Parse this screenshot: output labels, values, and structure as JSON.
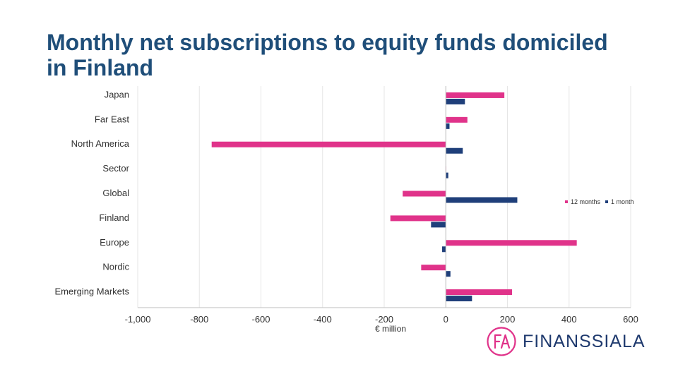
{
  "title": "Monthly net subscriptions to equity funds domiciled in Finland",
  "logo_text": "FINANSSIALA",
  "colors": {
    "accent": "#e0338a",
    "navy": "#1f3f7a",
    "title": "#1f4e79"
  },
  "chart_data": {
    "type": "bar",
    "orientation": "horizontal",
    "title": "Monthly net subscriptions to equity funds domiciled in Finland",
    "xlabel": "€ million",
    "ylabel": "",
    "xlim": [
      -1000,
      600
    ],
    "xticks": [
      -1000,
      -800,
      -600,
      -400,
      -200,
      0,
      200,
      400,
      600
    ],
    "xtick_labels": [
      "-1,000",
      "-800",
      "-600",
      "-400",
      "-200",
      "0",
      "200",
      "400",
      "600"
    ],
    "grid": true,
    "legend_position": "right",
    "categories": [
      "Japan",
      "Far East",
      "North America",
      "Sector",
      "Global",
      "Finland",
      "Europe",
      "Nordic",
      "Emerging Markets"
    ],
    "series": [
      {
        "name": "12 months",
        "color": "#e0338a",
        "values": [
          190,
          70,
          -760,
          0,
          -140,
          -180,
          425,
          -80,
          215
        ]
      },
      {
        "name": "1 month",
        "color": "#1f3f7a",
        "values": [
          62,
          12,
          55,
          8,
          232,
          -48,
          -12,
          15,
          85
        ]
      }
    ]
  }
}
